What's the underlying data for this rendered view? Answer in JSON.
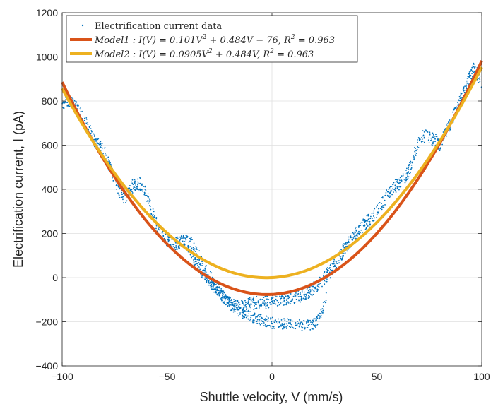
{
  "chart_data": {
    "type": "scatter",
    "xlabel": "Shuttle velocity, V (mm/s)",
    "ylabel": "Electrification current, I (pA)",
    "xlim": [
      -100,
      100
    ],
    "ylim": [
      -400,
      1200
    ],
    "xticks": [
      -100,
      -50,
      0,
      50,
      100
    ],
    "yticks": [
      -400,
      -200,
      0,
      200,
      400,
      600,
      800,
      1000,
      1200
    ],
    "xtick_labels": [
      "−100",
      "−50",
      "0",
      "50",
      "100"
    ],
    "ytick_labels": [
      "−400",
      "−200",
      "0",
      "200",
      "400",
      "600",
      "800",
      "1000",
      "1200"
    ],
    "grid": true,
    "legend_position": "top-left",
    "series": [
      {
        "name": "Electrification current data",
        "kind": "scatter",
        "color": "#0072BD",
        "x": [
          -100,
          -98,
          -96,
          -94,
          -92,
          -90,
          -88,
          -86,
          -84,
          -82,
          -80,
          -78,
          -76,
          -74,
          -72,
          -70,
          -68,
          -66,
          -64,
          -62,
          -60,
          -58,
          -56,
          -54,
          -52,
          -50,
          -48,
          -46,
          -44,
          -42,
          -40,
          -38,
          -36,
          -34,
          -32,
          -30,
          -28,
          -26,
          -24,
          -22,
          -20,
          -18,
          -16,
          -14,
          -12,
          -10,
          -8,
          -6,
          -4,
          -2,
          0,
          2,
          4,
          6,
          8,
          10,
          12,
          14,
          16,
          18,
          20,
          22,
          24,
          26,
          28,
          30,
          32,
          34,
          36,
          38,
          40,
          42,
          44,
          46,
          48,
          50,
          52,
          54,
          56,
          58,
          60,
          62,
          64,
          66,
          68,
          70,
          72,
          74,
          76,
          78,
          80,
          82,
          84,
          86,
          88,
          90,
          92,
          94,
          96,
          98,
          100
        ],
        "y": [
          790,
          805,
          800,
          780,
          755,
          720,
          690,
          650,
          610,
          600,
          570,
          520,
          470,
          420,
          380,
          360,
          390,
          420,
          425,
          420,
          380,
          320,
          270,
          220,
          190,
          170,
          160,
          150,
          160,
          165,
          165,
          150,
          120,
          80,
          40,
          10,
          -20,
          -50,
          -80,
          -100,
          -115,
          -125,
          -130,
          -130,
          -125,
          -120,
          -115,
          -110,
          -110,
          -110,
          -105,
          -100,
          -95,
          -95,
          -90,
          -90,
          -85,
          -80,
          -70,
          -60,
          -45,
          -30,
          -10,
          10,
          30,
          60,
          90,
          120,
          150,
          175,
          200,
          220,
          240,
          260,
          280,
          300,
          325,
          360,
          390,
          410,
          420,
          440,
          460,
          500,
          560,
          620,
          640,
          640,
          630,
          620,
          600,
          640,
          680,
          720,
          770,
          810,
          850,
          900,
          950,
          920,
          880
        ],
        "x_lower": [
          -40,
          -36,
          -32,
          -28,
          -24,
          -20,
          -16,
          -12,
          -8,
          -4,
          0,
          4,
          8,
          12,
          16,
          20,
          22,
          24,
          26
        ],
        "y_lower": [
          130,
          60,
          10,
          -40,
          -80,
          -120,
          -150,
          -170,
          -185,
          -195,
          -205,
          -210,
          -210,
          -215,
          -220,
          -210,
          -190,
          -150,
          -80
        ]
      },
      {
        "name": "Model1 : I(V) = 0.101V² + 0.484V − 76, R² = 0.963",
        "kind": "curve",
        "color": "#D95319",
        "coefficients": [
          0.101,
          0.484,
          -76
        ]
      },
      {
        "name": "Model2 : I(V) = 0.0905V² + 0.484V, R² = 0.963",
        "kind": "curve",
        "color": "#EDB120",
        "coefficients": [
          0.0905,
          0.484,
          0
        ]
      }
    ],
    "legend": {
      "entry1": "Electrification current data",
      "entry2_lead": "Model1 : I(V) = 0.101V",
      "entry2_exp": "2",
      "entry2_tail": " + 0.484V − 76, R",
      "entry2_exp2": "2",
      "entry2_end": " = 0.963",
      "entry3_lead": "Model2 : I(V) = 0.0905V",
      "entry3_exp": "2",
      "entry3_tail": " + 0.484V, R",
      "entry3_exp2": "2",
      "entry3_end": " = 0.963"
    }
  }
}
